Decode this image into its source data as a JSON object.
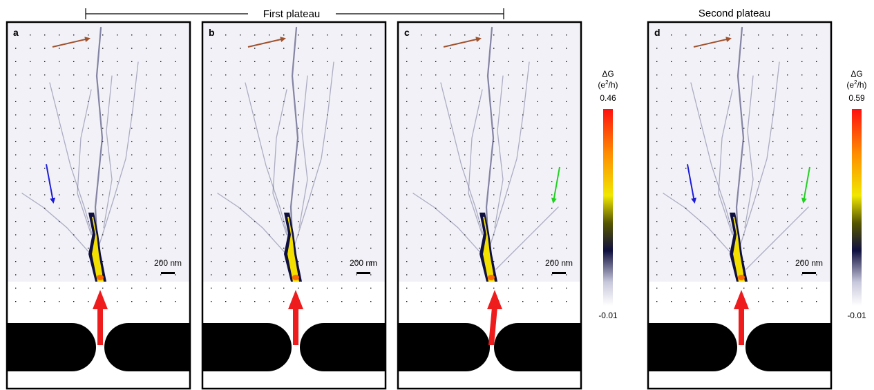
{
  "header": {
    "first_plateau": "First plateau",
    "second_plateau": "Second plateau"
  },
  "panels": [
    {
      "label": "a",
      "scale_bar": "200 nm",
      "arrows": [
        "brown",
        "blue",
        "red"
      ],
      "gate": "symmetric"
    },
    {
      "label": "b",
      "scale_bar": "200 nm",
      "arrows": [
        "brown",
        "red"
      ],
      "gate": "symmetric"
    },
    {
      "label": "c",
      "scale_bar": "200 nm",
      "arrows": [
        "brown",
        "green",
        "red"
      ],
      "gate": "asymmetric"
    },
    {
      "label": "d",
      "scale_bar": "200 nm",
      "arrows": [
        "brown",
        "blue",
        "green",
        "red"
      ],
      "gate": "symmetric"
    }
  ],
  "colorbars": [
    {
      "title": "ΔG",
      "unit_prefix": "(e",
      "unit_sup": "2",
      "unit_suffix": "/h)",
      "max": "0.46",
      "min": "-0.01"
    },
    {
      "title": "ΔG",
      "unit_prefix": "(e",
      "unit_sup": "2",
      "unit_suffix": "/h)",
      "max": "0.59",
      "min": "-0.01"
    }
  ],
  "colors": {
    "brown": "#a0522d",
    "blue": "#1c1cd8",
    "green": "#22d022",
    "red": "#ee1c1c",
    "branch": "#2a2a60",
    "hot_core": "#f4e000"
  }
}
